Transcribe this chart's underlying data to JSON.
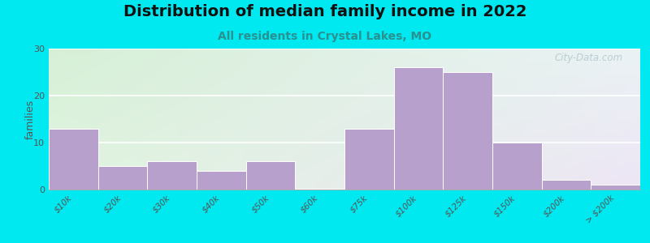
{
  "title": "Distribution of median family income in 2022",
  "subtitle": "All residents in Crystal Lakes, MO",
  "ylabel": "families",
  "categories": [
    "$10k",
    "$20k",
    "$30k",
    "$40k",
    "$50k",
    "$60k",
    "$75k",
    "$100k",
    "$125k",
    "$150k",
    "$200k",
    "> $200k"
  ],
  "values": [
    13,
    5,
    6,
    4,
    6,
    0,
    13,
    26,
    25,
    10,
    2,
    1
  ],
  "bar_color": "#b8a0cc",
  "bar_edge_color": "#ffffff",
  "ylim": [
    0,
    30
  ],
  "yticks": [
    0,
    10,
    20,
    30
  ],
  "background_outer": "#00e8f0",
  "bg_color_topleft": "#d6edd6",
  "bg_color_bottomright": "#ede8f5",
  "grid_color": "#ffffff",
  "title_fontsize": 14,
  "subtitle_fontsize": 10,
  "subtitle_color": "#2a9090",
  "watermark": "City-Data.com",
  "watermark_color": "#b0c8cc"
}
